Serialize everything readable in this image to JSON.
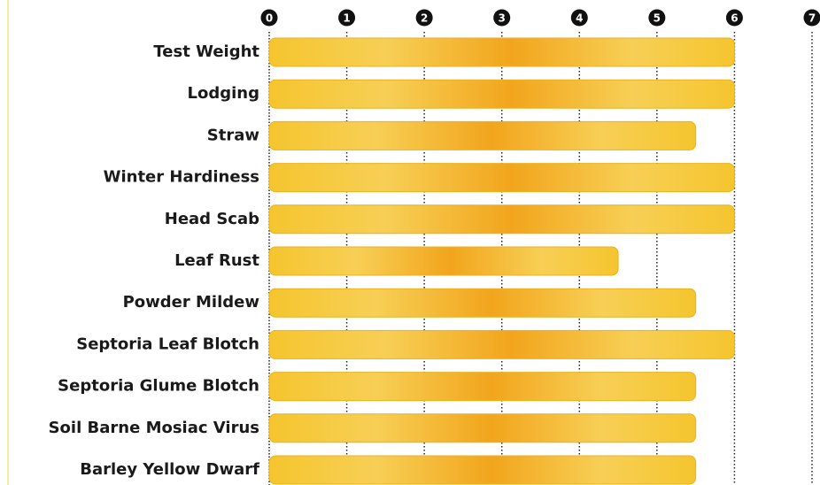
{
  "chart_data": {
    "type": "barh",
    "categories": [
      "Test Weight",
      "Lodging",
      "Straw",
      "Winter Hardiness",
      "Head Scab",
      "Leaf Rust",
      "Powder Mildew",
      "Septoria Leaf Blotch",
      "Septoria Glume Blotch",
      "Soil Barne Mosiac Virus",
      "Barley Yellow Dwarf"
    ],
    "values": [
      6,
      6,
      5.5,
      6,
      6,
      4.5,
      5.5,
      6,
      5.5,
      5.5,
      5.5
    ],
    "color": "#f4c12c",
    "xlim": [
      0,
      7
    ],
    "xticks": [
      0,
      1,
      2,
      3,
      4,
      5,
      6,
      7
    ],
    "grid": true
  }
}
